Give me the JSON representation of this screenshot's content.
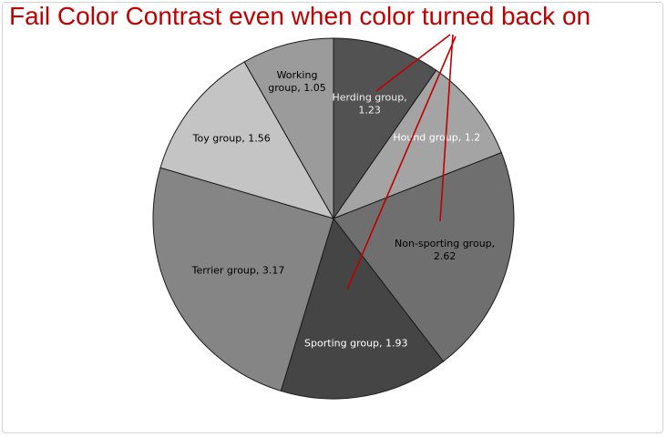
{
  "annotation": "Fail Color Contrast even when color turned back on",
  "chart_data": {
    "type": "pie",
    "categories": [
      "Herding group",
      "Hound group",
      "Non-sporting group",
      "Sporting group",
      "Terrier group",
      "Toy group",
      "Working group"
    ],
    "values": [
      1.23,
      1.2,
      2.62,
      1.93,
      3.17,
      1.56,
      1.05
    ],
    "labels": [
      [
        "Herding group,",
        "1.23"
      ],
      [
        "Hound group, 1.2"
      ],
      [
        "Non-sporting group,",
        "2.62"
      ],
      [
        "Sporting group, 1.93"
      ],
      [
        "Terrier group, 3.17"
      ],
      [
        "Toy group, 1.56"
      ],
      [
        "Working",
        "group, 1.05"
      ]
    ],
    "colors": [
      "#525252",
      "#a4a4a4",
      "#6f6f6f",
      "#454545",
      "#858585",
      "#c4c4c4",
      "#9b9b9b"
    ],
    "label_colors": [
      "#f0f0f0",
      "#ffffff",
      "#000000",
      "#ffffff",
      "#000000",
      "#000000",
      "#000000"
    ],
    "title": "",
    "legend": "none"
  },
  "callout_color": "#c00000"
}
